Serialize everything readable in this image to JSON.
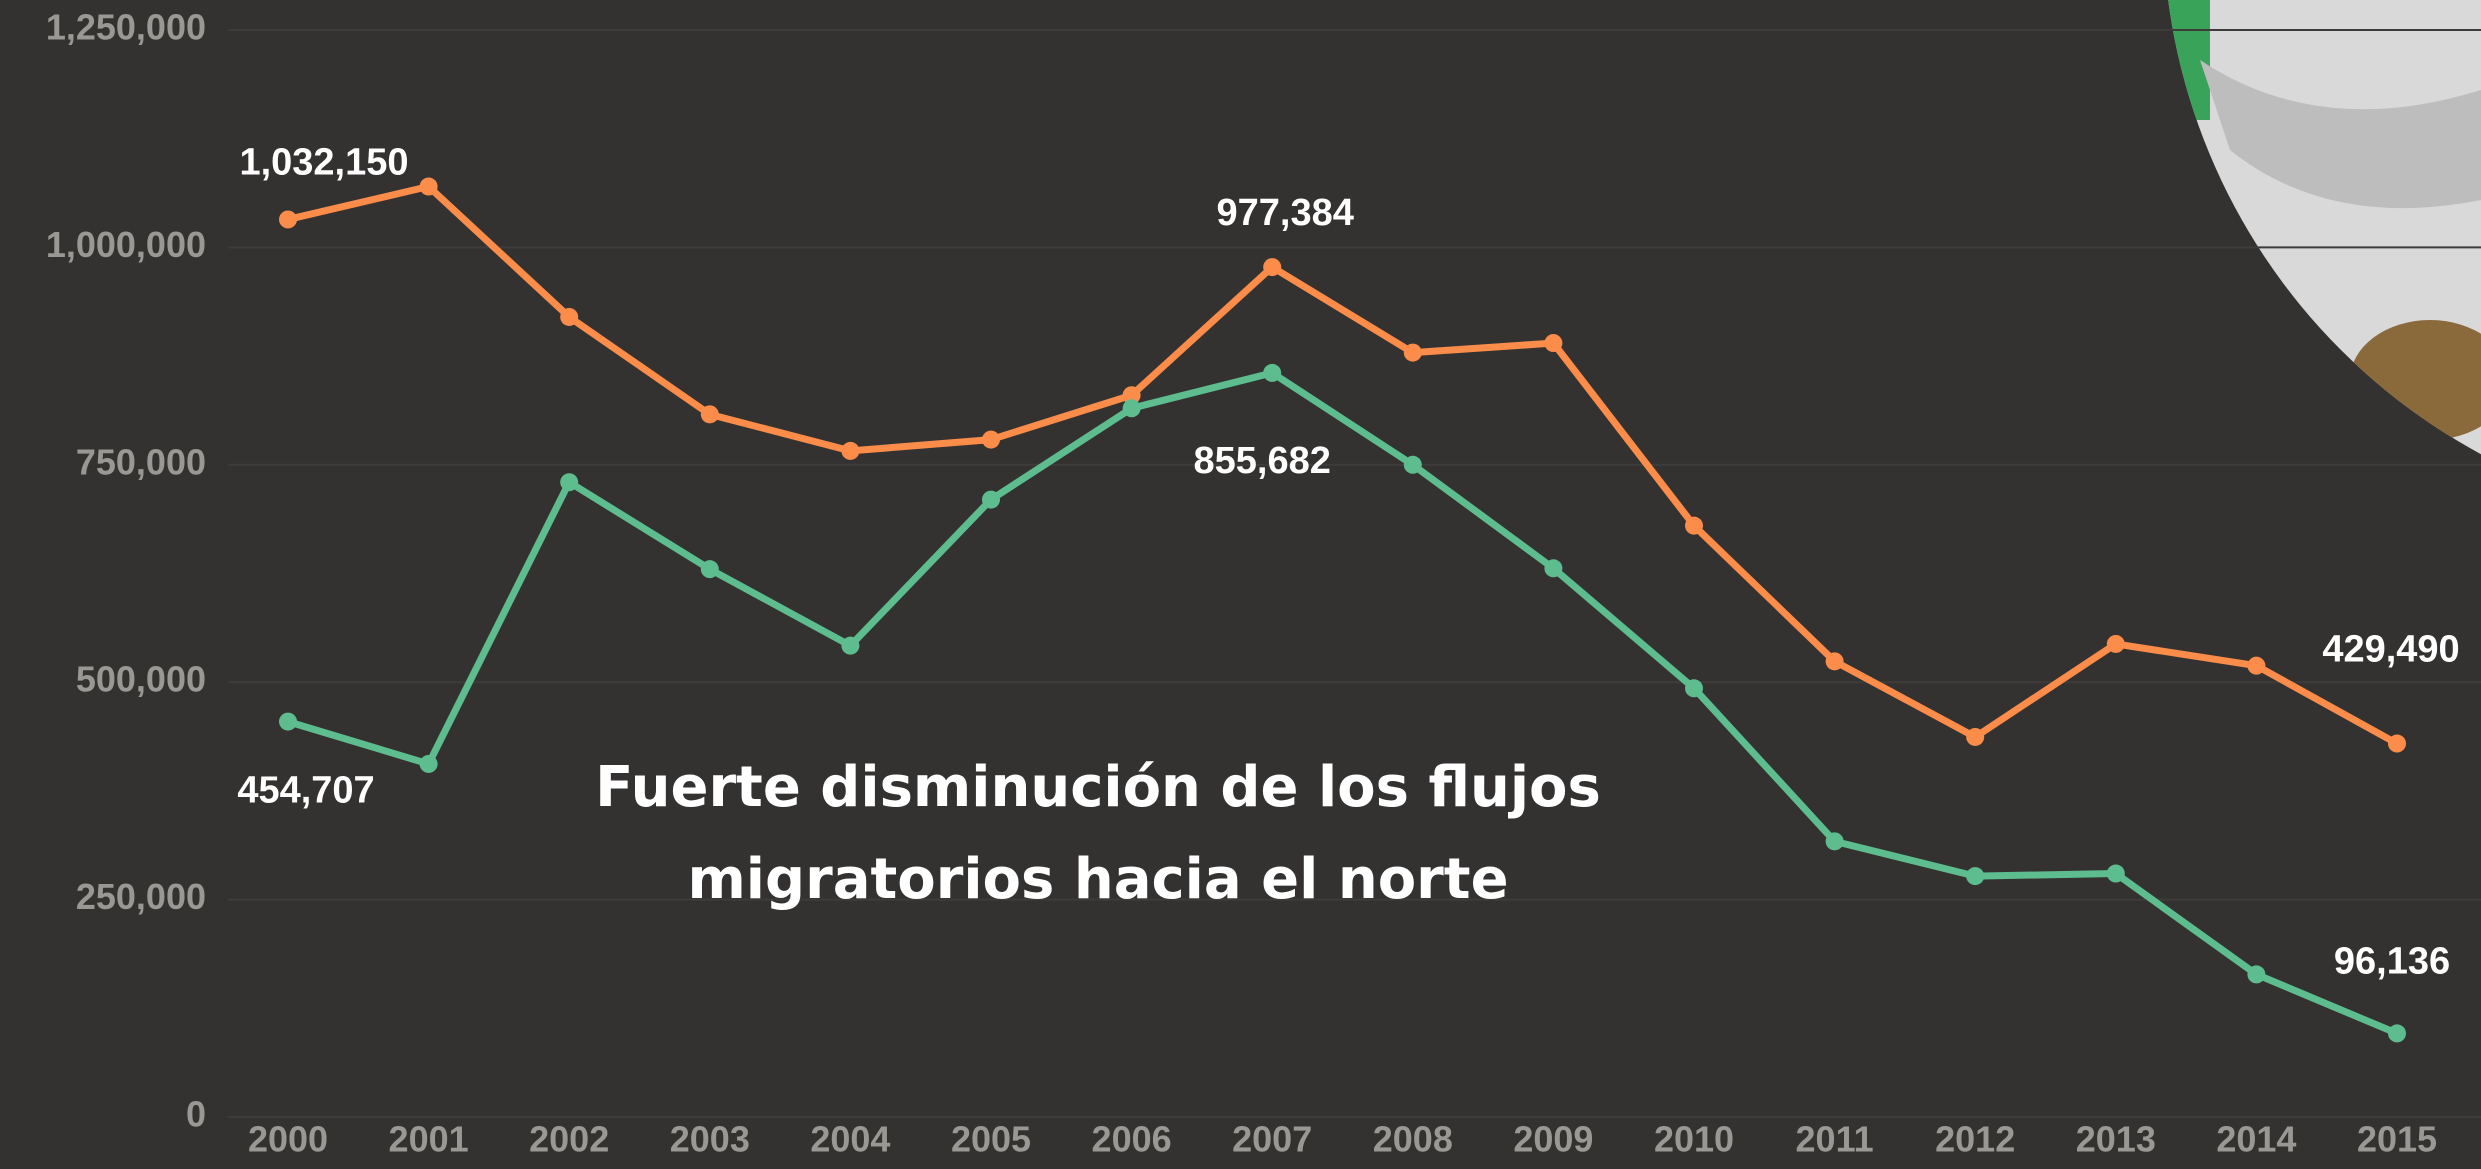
{
  "chart_data": {
    "type": "line",
    "title": [
      "Fuerte disminución de los flujos",
      "migratorios hacia el norte"
    ],
    "x": [
      "2000",
      "2001",
      "2002",
      "2003",
      "2004",
      "2005",
      "2006",
      "2007",
      "2008",
      "2009",
      "2010",
      "2011",
      "2012",
      "2013",
      "2014",
      "2015"
    ],
    "series": [
      {
        "color": "#fb8c4a",
        "values": [
          1032150,
          1070000,
          920000,
          808000,
          766000,
          779000,
          830000,
          977384,
          879000,
          890000,
          680000,
          524000,
          437000,
          544000,
          519000,
          429490
        ],
        "value_labels": [
          "1,032,150",
          null,
          null,
          null,
          null,
          null,
          null,
          "977,384",
          null,
          null,
          null,
          null,
          null,
          null,
          null,
          "429,490"
        ]
      },
      {
        "color": "#5dbd8e",
        "values": [
          454707,
          406000,
          730000,
          630000,
          542000,
          710000,
          815000,
          855682,
          750000,
          631000,
          493000,
          317000,
          277000,
          280000,
          164000,
          96136
        ],
        "value_labels": [
          "454,707",
          null,
          null,
          null,
          null,
          null,
          null,
          "855,682",
          null,
          null,
          null,
          null,
          null,
          null,
          null,
          "96,136"
        ]
      }
    ],
    "ylim": [
      0,
      1250000
    ],
    "yticks": [
      {
        "value": 0,
        "label": "0"
      },
      {
        "value": 250000,
        "label": "250,000"
      },
      {
        "value": 500000,
        "label": "500,000"
      },
      {
        "value": 750000,
        "label": "750,000"
      },
      {
        "value": 1000000,
        "label": "1,000,000"
      },
      {
        "value": 1250000,
        "label": "1,250,000"
      }
    ],
    "grid": true
  }
}
